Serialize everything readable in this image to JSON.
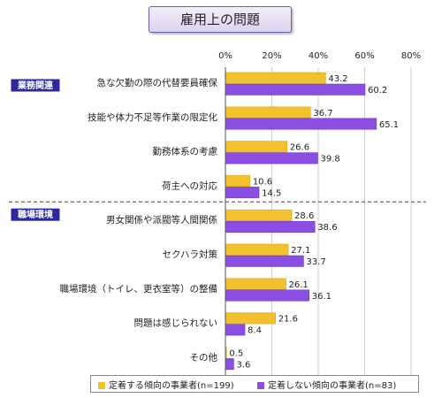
{
  "chart_data": {
    "type": "bar",
    "orientation": "horizontal",
    "title": "雇用上の問題",
    "xlim": [
      0,
      80
    ],
    "x_ticks": [
      "0%",
      "20%",
      "40%",
      "60%",
      "80%"
    ],
    "groups": [
      {
        "label": "業務関連",
        "categories": [
          "急な欠勤の際の代替要員確保",
          "技能や体力不足等作業の限定化",
          "勤務体系の考慮",
          "荷主への対応"
        ]
      },
      {
        "label": "職場環境",
        "categories": [
          "男女関係や派閥等人間関係",
          "セクハラ対策",
          "職場環境（トイレ、更衣室等）の整備",
          "問題は感じられない",
          "その他"
        ]
      }
    ],
    "categories": [
      "急な欠勤の際の代替要員確保",
      "技能や体力不足等作業の限定化",
      "勤務体系の考慮",
      "荷主への対応",
      "男女関係や派閥等人間関係",
      "セクハラ対策",
      "職場環境（トイレ、更衣室等）の整備",
      "問題は感じられない",
      "その他"
    ],
    "series": [
      {
        "name": "定着する傾向の事業者(n=199)",
        "color": "#f2c12e",
        "values": [
          43.2,
          36.7,
          26.6,
          10.6,
          28.6,
          27.1,
          26.1,
          21.6,
          0.5
        ]
      },
      {
        "name": "定着しない傾向の事業者(n=83)",
        "color": "#8a4fe0",
        "values": [
          60.2,
          65.1,
          39.8,
          14.5,
          38.6,
          33.7,
          36.1,
          8.4,
          3.6
        ]
      }
    ],
    "grid": true,
    "legend_position": "bottom"
  }
}
